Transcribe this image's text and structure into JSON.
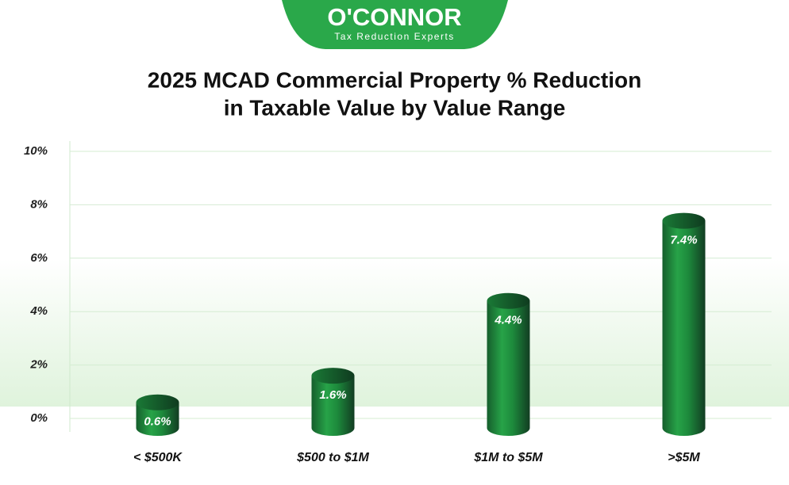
{
  "logo": {
    "name": "O'CONNOR",
    "tagline": "Tax Reduction Experts"
  },
  "chart_data": {
    "type": "bar",
    "title": [
      "2025 MCAD Commercial Property % Reduction",
      "in Taxable Value by Value Range"
    ],
    "categories": [
      "< $500K",
      "$500 to $1M",
      "$1M to $5M",
      ">$5M"
    ],
    "values": [
      0.6,
      1.6,
      4.4,
      7.4
    ],
    "value_labels": [
      "0.6%",
      "1.6%",
      "4.4%",
      "7.4%"
    ],
    "color": "#1f9a45",
    "ylim": [
      0,
      10
    ],
    "yticks": [
      {
        "value": 0,
        "label": "0%"
      },
      {
        "value": 2,
        "label": "2%"
      },
      {
        "value": 4,
        "label": "4%"
      },
      {
        "value": 6,
        "label": "6%"
      },
      {
        "value": 8,
        "label": "8%"
      },
      {
        "value": 10,
        "label": "10%"
      }
    ],
    "grid": true
  }
}
